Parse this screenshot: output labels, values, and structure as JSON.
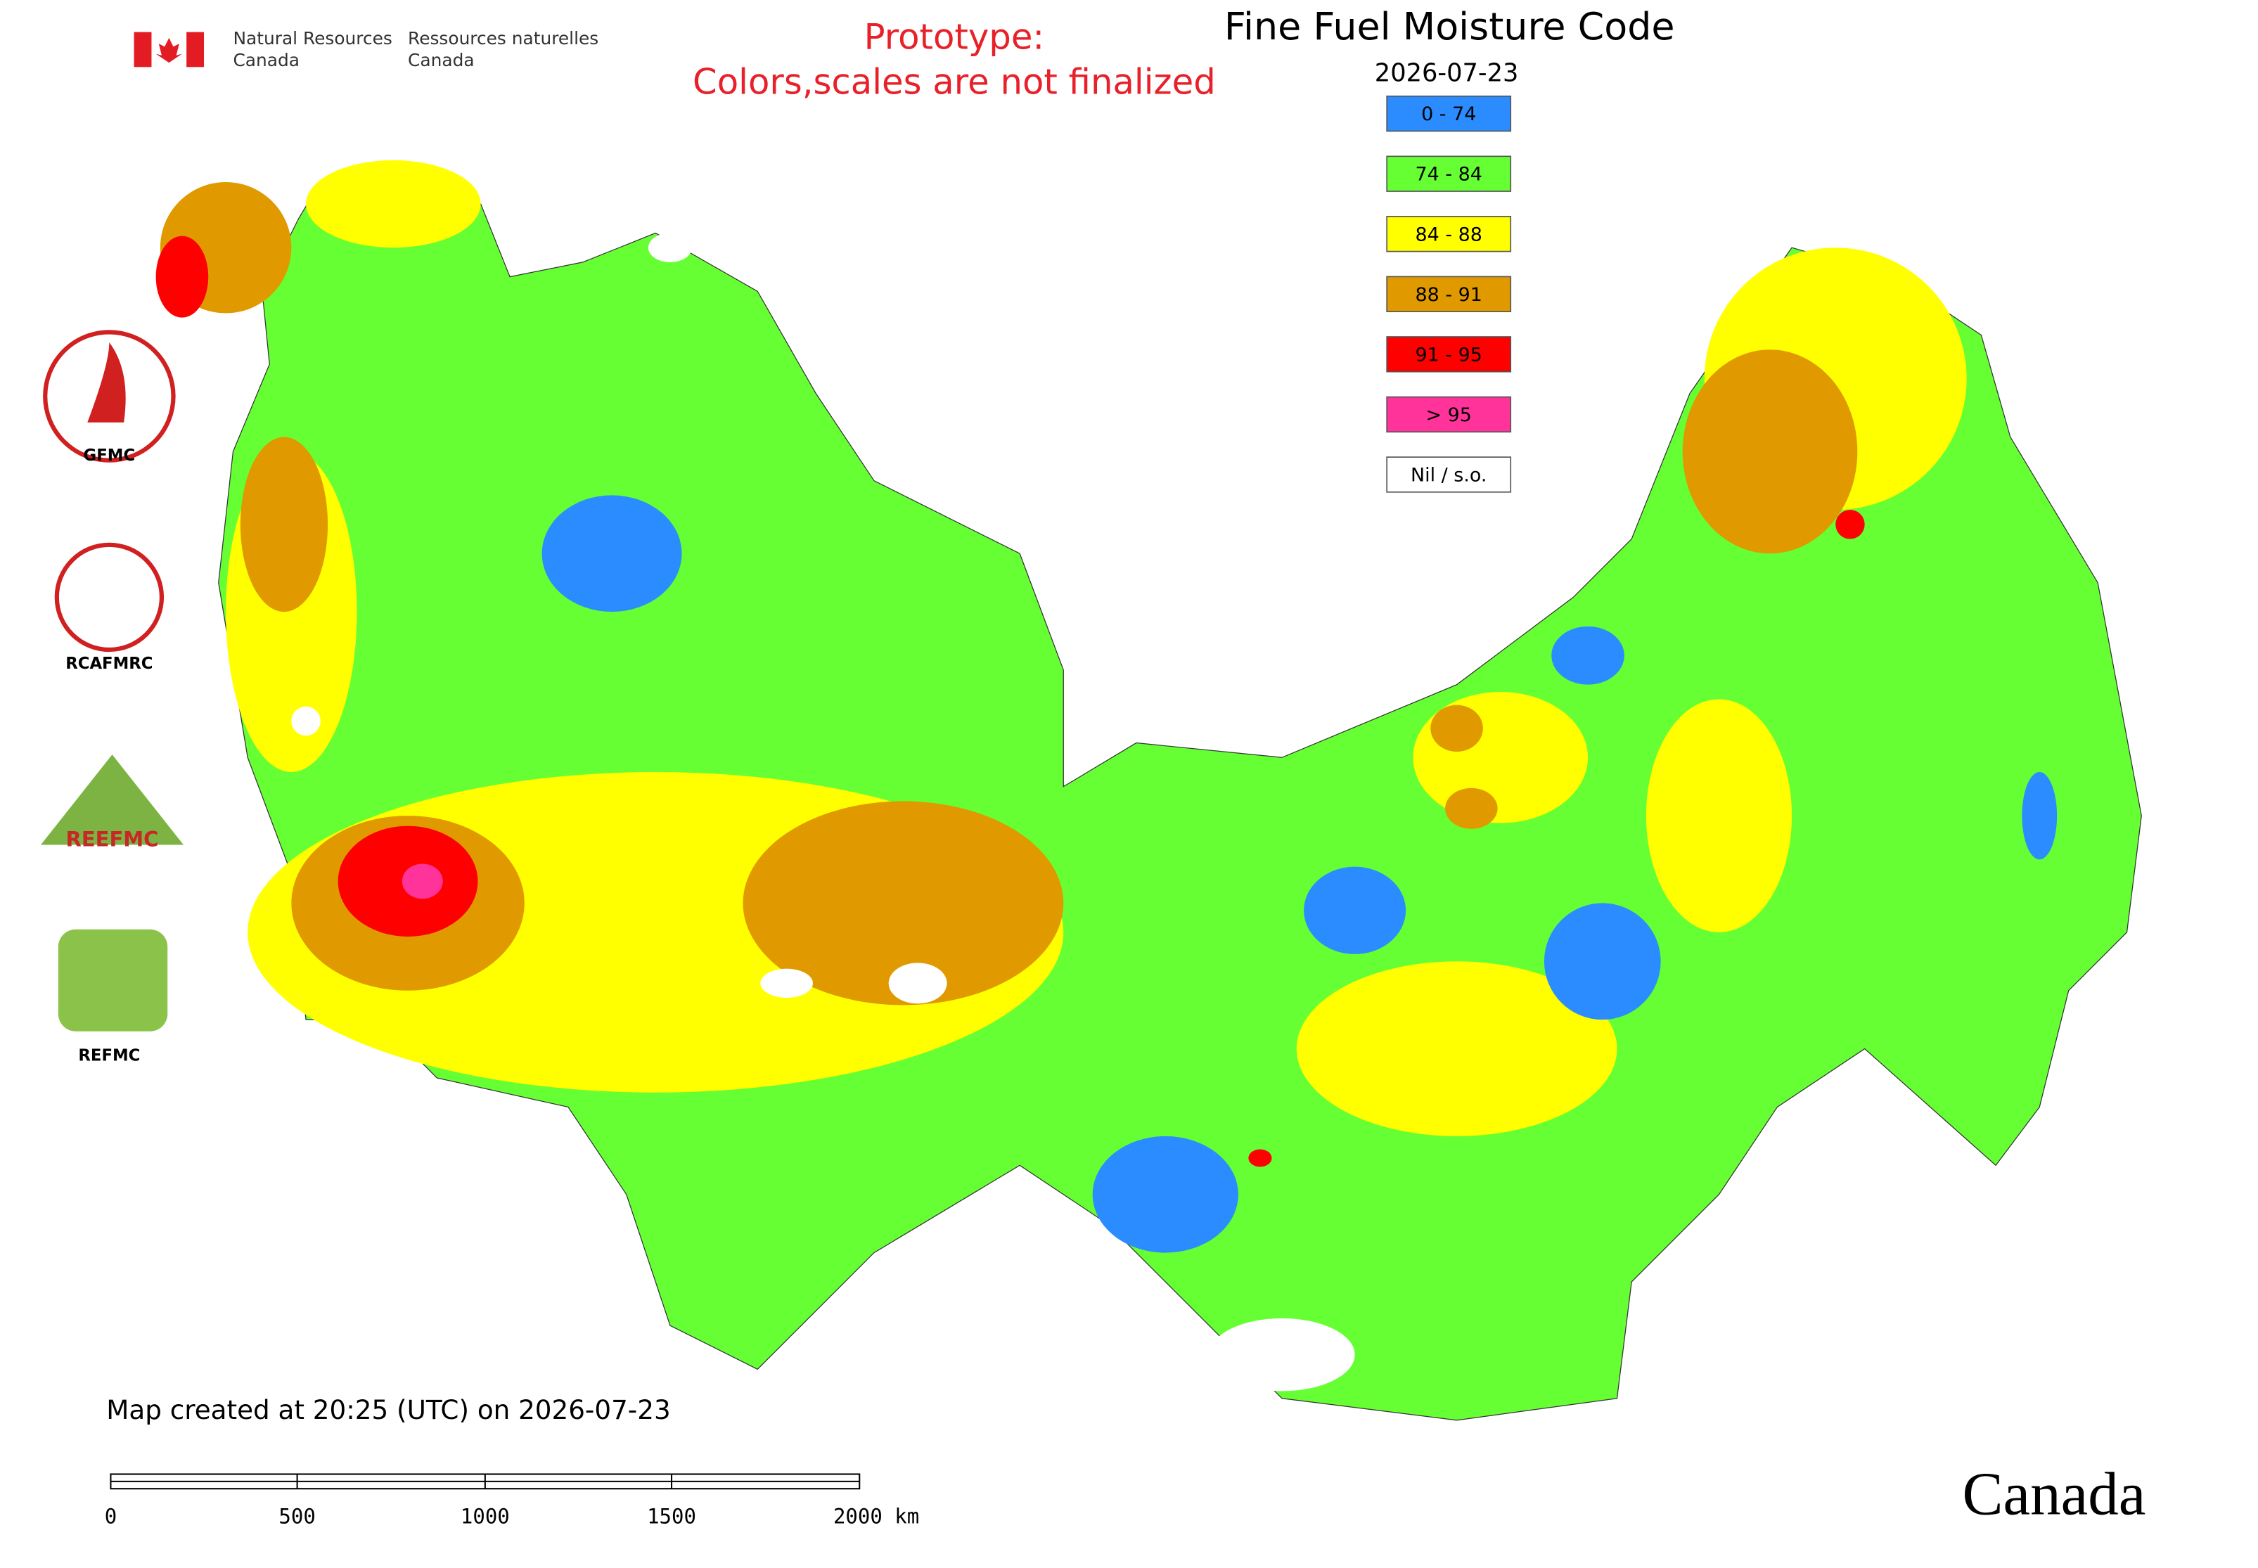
{
  "header": {
    "department_en": [
      "Natural Resources",
      "Canada"
    ],
    "department_fr": [
      "Ressources naturelles",
      "Canada"
    ],
    "notice": [
      "Prototype:",
      "Colors,scales are not finalized"
    ]
  },
  "map": {
    "title": "Fine Fuel Moisture Code",
    "date": "2026-07-23",
    "legend": [
      {
        "label": "0 - 74",
        "color": "#2a8cff"
      },
      {
        "label": "74 - 84",
        "color": "#66ff33"
      },
      {
        "label": "84 - 88",
        "color": "#ffff00"
      },
      {
        "label": "88 - 91",
        "color": "#e09a00"
      },
      {
        "label": "91 - 95",
        "color": "#ff0000"
      },
      {
        "label": "> 95",
        "color": "#ff3399"
      },
      {
        "label": "Nil / s.o.",
        "color": "#ffffff"
      }
    ]
  },
  "logos": [
    "GFMC",
    "RCAFMRC",
    "REEFMC",
    "REFMC"
  ],
  "footer": {
    "created": "Map created at 20:25 (UTC) on 2026-07-23",
    "scale_bar": [
      "0",
      "500",
      "1000",
      "1500",
      "2000 km"
    ],
    "wordmark": "Canada"
  }
}
